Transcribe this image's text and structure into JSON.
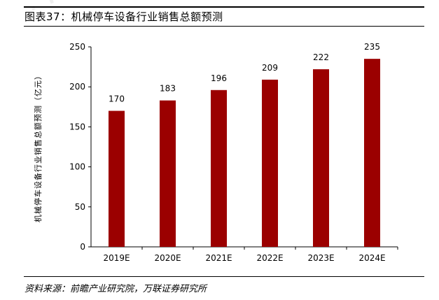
{
  "header": {
    "title": "图表37：机械停车设备行业销售总额预测"
  },
  "footer": {
    "source": "资料来源：前瞻产业研究院，万联证券研究所"
  },
  "colors": {
    "bar": "#9b0000",
    "rule": "#000000"
  },
  "chart_data": {
    "type": "bar",
    "title": "图表37：机械停车设备行业销售总额预测",
    "xlabel": "",
    "ylabel": "机械停车设备行业销售总额预测（亿元）",
    "categories": [
      "2019E",
      "2020E",
      "2021E",
      "2022E",
      "2023E",
      "2024E"
    ],
    "values": [
      170,
      183,
      196,
      209,
      222,
      235
    ],
    "ylim": [
      0,
      250
    ],
    "yticks": [
      0,
      50,
      100,
      150,
      200,
      250
    ],
    "grid": false,
    "legend": "none"
  }
}
